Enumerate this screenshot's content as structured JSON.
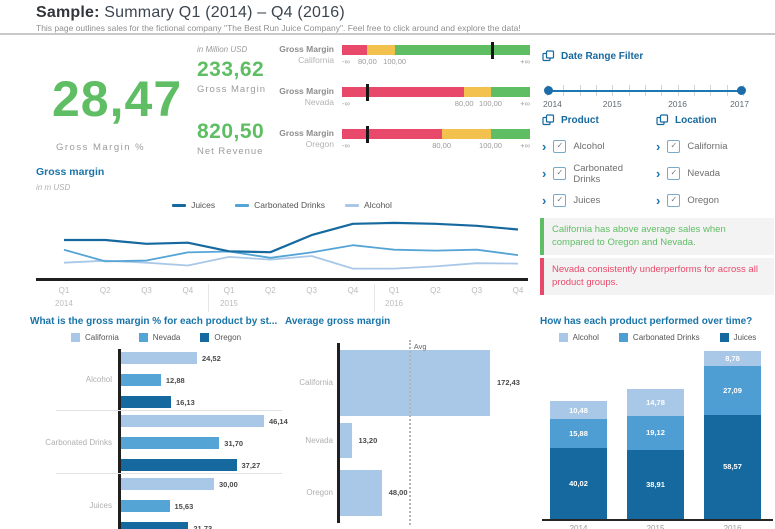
{
  "header": {
    "title_prefix": "Sample:",
    "title_rest": " Summary Q1 (2014) – Q4 (2016)",
    "subtitle": "This page outlines sales for the fictional company \"The Best Run Juice Company\". Feel free to click around and explore the data!"
  },
  "colors": {
    "green": "#5fbe64",
    "red": "#e8496b",
    "yellow": "#f2c14e",
    "title_blue": "#1874a9",
    "slider_blue": "#1c77b5",
    "bar_light": "#a9c8e8",
    "bar_medium": "#55a4d6",
    "bar_dark": "#16699e"
  },
  "kpi": {
    "unit_label": "in Million USD",
    "gross_margin_pct": {
      "value": "28,47",
      "label": "Gross Margin %"
    },
    "gross_margin": {
      "value": "233,62",
      "label": "Gross Margin"
    },
    "net_revenue": {
      "value": "820,50",
      "label": "Net Revenue"
    }
  },
  "bullets": [
    {
      "measure": "Gross Margin",
      "region": "California",
      "neg_label": "-∞",
      "pos_label": "+∞",
      "segments": {
        "red_pct": 13.5,
        "yellow_pct": 14.5
      },
      "ticks": [
        {
          "label": "80,00",
          "pct": 13.5
        },
        {
          "label": "100,00",
          "pct": 28
        }
      ],
      "marker_pct": 79
    },
    {
      "measure": "Gross Margin",
      "region": "Nevada",
      "neg_label": "-∞",
      "pos_label": "+∞",
      "segments": {
        "red_pct": 65,
        "yellow_pct": 14
      },
      "ticks": [
        {
          "label": "80,00",
          "pct": 65
        },
        {
          "label": "100,00",
          "pct": 79
        }
      ],
      "marker_pct": 13
    },
    {
      "measure": "Gross Margin",
      "region": "Oregon",
      "neg_label": "-∞",
      "pos_label": "+∞",
      "segments": {
        "red_pct": 53,
        "yellow_pct": 26
      },
      "ticks": [
        {
          "label": "80,00",
          "pct": 53
        },
        {
          "label": "100,00",
          "pct": 79
        }
      ],
      "marker_pct": 13
    }
  ],
  "date_filter": {
    "title": "Date Range Filter",
    "year_labels": [
      "2014",
      "2015",
      "2016",
      "2017"
    ]
  },
  "filters": {
    "product": {
      "title": "Product",
      "items": [
        "Alcohol",
        "Carbonated Drinks",
        "Juices"
      ]
    },
    "location": {
      "title": "Location",
      "items": [
        "California",
        "Nevada",
        "Oregon"
      ]
    }
  },
  "callouts": {
    "positive": {
      "text": "California has above average sales when compared to Oregon and Nevada."
    },
    "negative": {
      "text": "Nevada consistently underperforms for across all product groups."
    }
  },
  "chart_data": [
    {
      "type": "line",
      "title": "Gross margin",
      "subtitle": "in m USD",
      "x": [
        "Q1",
        "Q2",
        "Q3",
        "Q4",
        "Q1",
        "Q2",
        "Q3",
        "Q4",
        "Q1",
        "Q2",
        "Q3",
        "Q4"
      ],
      "year_groups": [
        "2014",
        "2015",
        "2016"
      ],
      "ylim": [
        0,
        30
      ],
      "legend_position": "top-center",
      "grid": false,
      "series": [
        {
          "name": "Juices",
          "color": "#16699e",
          "values": [
            18.9,
            18.9,
            16.8,
            17.4,
            12.6,
            12.1,
            21.6,
            27.9,
            28.4,
            27.9,
            26.8,
            24.7
          ]
        },
        {
          "name": "Carbonated Drinks",
          "color": "#55a4d6",
          "values": [
            13.5,
            7.0,
            7.5,
            12.0,
            12.5,
            9.0,
            12.0,
            16.0,
            13.5,
            13.0,
            13.5,
            10.5
          ]
        },
        {
          "name": "Alcohol",
          "color": "#a9c8e8",
          "values": [
            6.3,
            7.4,
            6.3,
            4.7,
            9.5,
            8.0,
            10.0,
            3.0,
            3.0,
            4.2,
            6.0,
            5.8
          ]
        }
      ]
    },
    {
      "type": "bar",
      "orientation": "horizontal",
      "stacked": false,
      "title": "What is the gross margin % for each product by st...",
      "categories": [
        "Alcohol",
        "Carbonated Drinks",
        "Juices"
      ],
      "series": [
        {
          "name": "California",
          "color": "#a9c8e8",
          "values": [
            24.52,
            46.14,
            30.0
          ],
          "labels": [
            "24,52",
            "46,14",
            "30,00"
          ]
        },
        {
          "name": "Nevada",
          "color": "#55a4d6",
          "values": [
            12.88,
            31.7,
            15.63
          ],
          "labels": [
            "12,88",
            "31,70",
            "15,63"
          ]
        },
        {
          "name": "Oregon",
          "color": "#16699e",
          "values": [
            16.13,
            37.27,
            21.73
          ],
          "labels": [
            "16,13",
            "37,27",
            "21,73"
          ]
        }
      ]
    },
    {
      "type": "bar",
      "orientation": "horizontal",
      "title": "Average gross margin",
      "categories": [
        "California",
        "Nevada",
        "Oregon"
      ],
      "values": [
        172.43,
        13.2,
        48.0
      ],
      "labels": [
        "172,43",
        "13,20",
        "48,00"
      ],
      "color": "#a9c8e8",
      "avg_label": "Avg",
      "avg_value": 77.88
    },
    {
      "type": "bar",
      "stacked": true,
      "title": "How has each product performed over time?",
      "categories": [
        "2014",
        "2015",
        "2016"
      ],
      "series": [
        {
          "name": "Alcohol",
          "color": "#a9c8e8",
          "values": [
            10.48,
            14.78,
            8.78
          ],
          "labels": [
            "10,48",
            "14,78",
            "8,78"
          ]
        },
        {
          "name": "Carbonated Drinks",
          "color": "#4e9ed4",
          "values": [
            15.88,
            19.12,
            27.09
          ],
          "labels": [
            "15,88",
            "19,12",
            "27,09"
          ]
        },
        {
          "name": "Juices",
          "color": "#16699e",
          "values": [
            40.02,
            38.91,
            58.57
          ],
          "labels": [
            "40,02",
            "38,91",
            "58,57"
          ]
        }
      ]
    }
  ]
}
